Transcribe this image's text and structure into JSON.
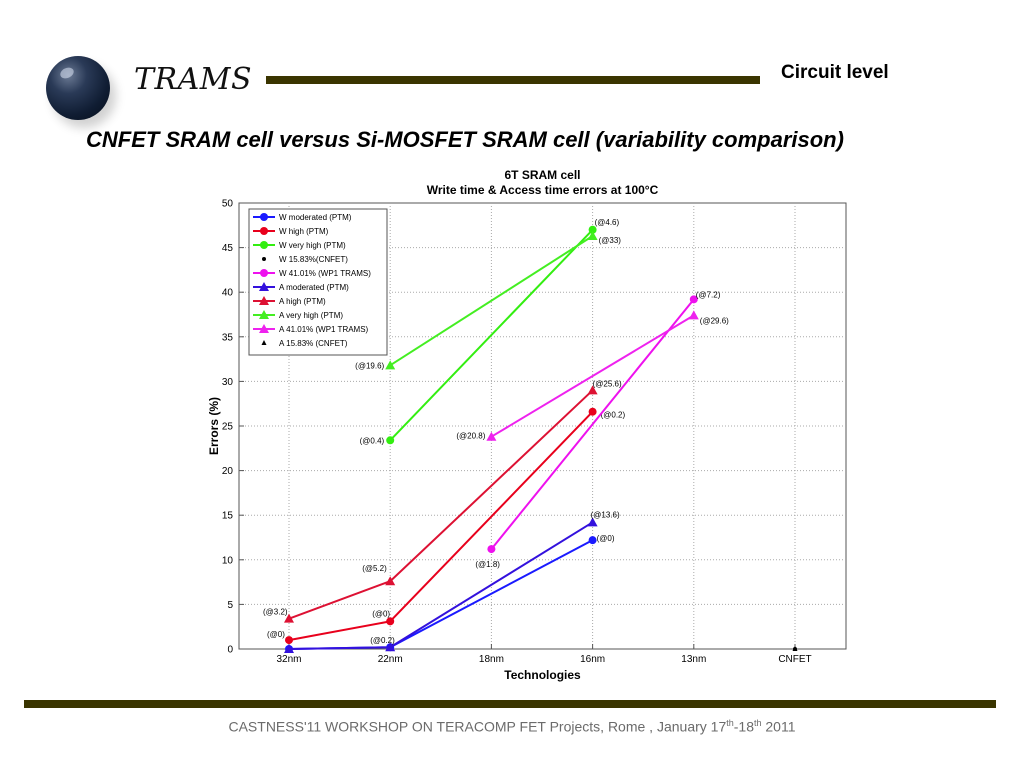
{
  "header": {
    "logo_text": "TRAMS",
    "section_label": "Circuit level",
    "slide_title": "CNFET SRAM cell versus Si-MOSFET SRAM cell (variability comparison)"
  },
  "footer": {
    "text_main": "CASTNESS'11 WORKSHOP ON TERACOMP  FET Projects, Rome , January 17",
    "sup1": "th",
    "dash": "-18",
    "sup2": "th",
    "year": " 2011"
  },
  "chart_data": {
    "type": "line",
    "title": "6T SRAM cell",
    "subtitle": "Write time & Access time errors at 100°C",
    "xlabel": "Technologies",
    "ylabel": "Errors (%)",
    "categories": [
      "32nm",
      "22nm",
      "18nm",
      "16nm",
      "13nm",
      "CNFET"
    ],
    "ylim": [
      0,
      50
    ],
    "yticks": [
      0,
      5,
      10,
      15,
      20,
      25,
      30,
      35,
      40,
      45,
      50
    ],
    "grid": true,
    "legend_position": "top-left",
    "series": [
      {
        "name": "W moderated (PTM)",
        "color": "#1a1aff",
        "marker": "circle",
        "points": [
          {
            "x": "32nm",
            "y": 0
          },
          {
            "x": "22nm",
            "y": 0.2
          },
          {
            "x": "16nm",
            "y": 12.2,
            "label": "(@0)"
          }
        ]
      },
      {
        "name": "W high (PTM)",
        "color": "#e8001c",
        "marker": "circle",
        "points": [
          {
            "x": "32nm",
            "y": 1.0,
            "label": "(@0)"
          },
          {
            "x": "22nm",
            "y": 3.1,
            "label": "(@0)"
          },
          {
            "x": "16nm",
            "y": 26.6,
            "label": "(@0.2)"
          }
        ]
      },
      {
        "name": "W very high (PTM)",
        "color": "#33ee11",
        "marker": "circle",
        "points": [
          {
            "x": "22nm",
            "y": 23.4,
            "label": "(@0.4)"
          },
          {
            "x": "16nm",
            "y": 47.0,
            "label": "(@4.6)"
          }
        ]
      },
      {
        "name": "W 15.83%(CNFET)",
        "color": "#000000",
        "marker": "dot",
        "points": [
          {
            "x": "CNFET",
            "y": 0
          }
        ]
      },
      {
        "name": "W 41.01% (WP1 TRAMS)",
        "color": "#ee11ee",
        "marker": "circle",
        "points": [
          {
            "x": "18nm",
            "y": 11.2,
            "label": "(@1.8)"
          },
          {
            "x": "13nm",
            "y": 39.2,
            "label": "(@7.2)"
          }
        ]
      },
      {
        "name": "A moderated (PTM)",
        "color": "#3311dd",
        "marker": "triangle",
        "points": [
          {
            "x": "32nm",
            "y": 0
          },
          {
            "x": "22nm",
            "y": 0.2,
            "label": "(@0.2)"
          },
          {
            "x": "16nm",
            "y": 14.2,
            "label": "(@13.6)"
          }
        ]
      },
      {
        "name": "A high (PTM)",
        "color": "#dd1133",
        "marker": "triangle",
        "points": [
          {
            "x": "32nm",
            "y": 3.4,
            "label": "(@3.2)"
          },
          {
            "x": "22nm",
            "y": 7.6,
            "label": "(@5.2)"
          },
          {
            "x": "16nm",
            "y": 29.0,
            "label": "(@25.6)"
          }
        ]
      },
      {
        "name": "A very high (PTM)",
        "color": "#44ee22",
        "marker": "triangle",
        "points": [
          {
            "x": "22nm",
            "y": 31.8,
            "label": "(@19.6)"
          },
          {
            "x": "16nm",
            "y": 46.3,
            "label": "(@33)"
          }
        ]
      },
      {
        "name": "A 41.01% (WP1 TRAMS)",
        "color": "#ee22ee",
        "marker": "triangle",
        "points": [
          {
            "x": "18nm",
            "y": 23.8,
            "label": "(@20.8)"
          },
          {
            "x": "13nm",
            "y": 37.4,
            "label": "(@29.6)"
          }
        ]
      },
      {
        "name": "A 15.83% (CNFET)",
        "color": "#000000",
        "marker": "small-triangle",
        "points": [
          {
            "x": "CNFET",
            "y": 0
          }
        ]
      }
    ]
  }
}
